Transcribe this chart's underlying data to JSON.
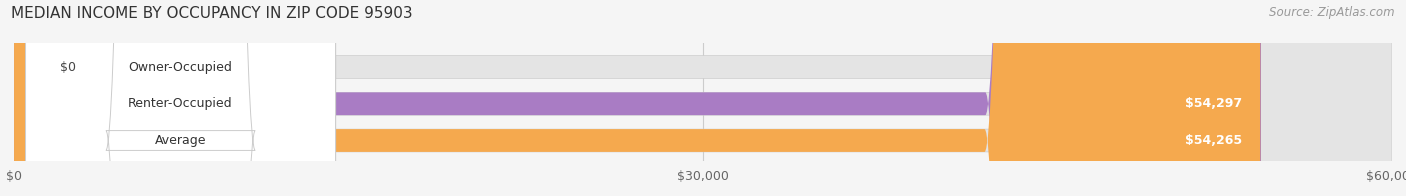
{
  "title": "MEDIAN INCOME BY OCCUPANCY IN ZIP CODE 95903",
  "source": "Source: ZipAtlas.com",
  "categories": [
    "Owner-Occupied",
    "Renter-Occupied",
    "Average"
  ],
  "values": [
    0,
    54297,
    54265
  ],
  "bar_colors": [
    "#5bcfcf",
    "#a97cc4",
    "#f5a94e"
  ],
  "value_labels": [
    "$0",
    "$54,297",
    "$54,265"
  ],
  "xlim": [
    0,
    60000
  ],
  "xticks": [
    0,
    30000,
    60000
  ],
  "xtick_labels": [
    "$0",
    "$30,000",
    "$60,000"
  ],
  "background_color": "#f5f5f5",
  "bar_bg_color": "#e4e4e4",
  "title_fontsize": 11,
  "source_fontsize": 8.5,
  "label_fontsize": 9,
  "tick_fontsize": 9
}
